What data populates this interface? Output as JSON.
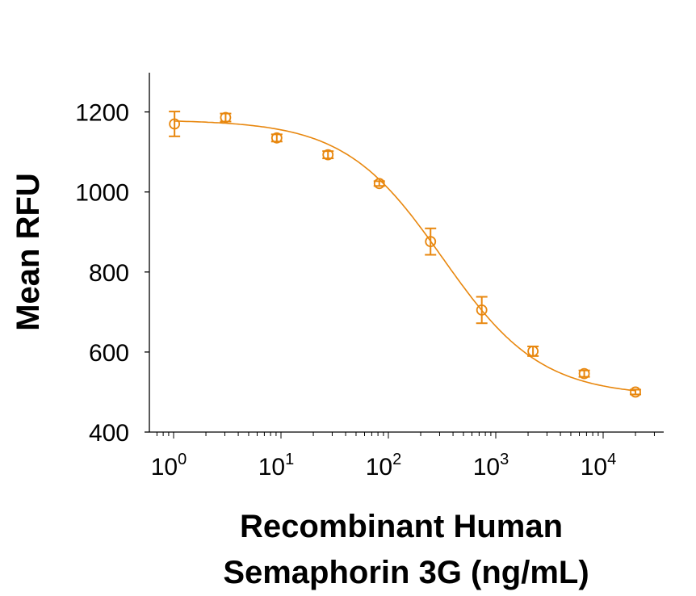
{
  "chart_data": {
    "type": "scatter",
    "title": "",
    "xlabel_line1": "Recombinant Human",
    "xlabel_line2": "Semaphorin 3G (ng/mL)",
    "ylabel": "Mean RFU",
    "xscale": "log",
    "xlim": [
      0.5,
      35000
    ],
    "ylim": [
      400,
      1300
    ],
    "yticks": [
      400,
      600,
      800,
      1000,
      1200
    ],
    "xticks": [
      1,
      10,
      100,
      1000,
      10000
    ],
    "xtick_labels": [
      {
        "base": "10",
        "exp": "0"
      },
      {
        "base": "10",
        "exp": "1"
      },
      {
        "base": "10",
        "exp": "2"
      },
      {
        "base": "10",
        "exp": "3"
      },
      {
        "base": "10",
        "exp": "4"
      }
    ],
    "grid": false,
    "color": "#E8870E",
    "points": [
      {
        "x": 1.02,
        "y": 1170,
        "err": 31
      },
      {
        "x": 3.05,
        "y": 1186,
        "err": 10
      },
      {
        "x": 9.14,
        "y": 1135,
        "err": 9
      },
      {
        "x": 27.4,
        "y": 1093,
        "err": 9
      },
      {
        "x": 82.3,
        "y": 1021,
        "err": 6
      },
      {
        "x": 247,
        "y": 876,
        "err": 33
      },
      {
        "x": 741,
        "y": 705,
        "err": 33
      },
      {
        "x": 2222,
        "y": 602,
        "err": 12
      },
      {
        "x": 6667,
        "y": 546,
        "err": 8
      },
      {
        "x": 20000,
        "y": 500,
        "err": 6
      }
    ],
    "fit": {
      "model": "4PL",
      "top": 1180,
      "bottom": 490,
      "ec50": 320,
      "hill": 0.95
    }
  }
}
